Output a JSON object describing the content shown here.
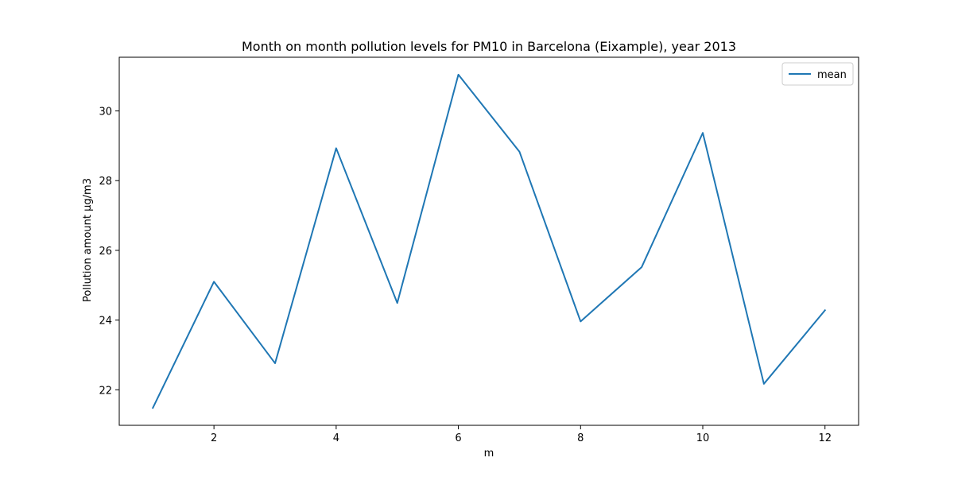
{
  "chart_data": {
    "type": "line",
    "title": "Month on month pollution levels for PM10 in Barcelona (Eixample), year 2013",
    "xlabel": "m",
    "ylabel": "Pollution amount µg/m3",
    "x": [
      1,
      2,
      3,
      4,
      5,
      6,
      7,
      8,
      9,
      10,
      11,
      12
    ],
    "series": [
      {
        "name": "mean",
        "color": "#1f77b4",
        "values": [
          21.48,
          25.1,
          22.76,
          28.93,
          24.49,
          31.04,
          28.83,
          23.96,
          25.52,
          29.37,
          22.17,
          24.28
        ]
      }
    ],
    "xlim": [
      0.45,
      12.55
    ],
    "ylim": [
      20.98,
      31.54
    ],
    "xticks": [
      2,
      4,
      6,
      8,
      10,
      12
    ],
    "yticks": [
      22,
      24,
      26,
      28,
      30
    ],
    "grid": false,
    "legend_position": "top-right"
  }
}
